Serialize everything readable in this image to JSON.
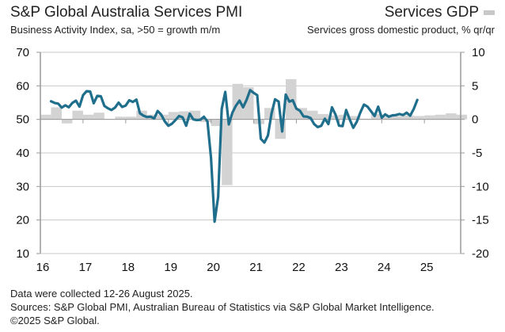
{
  "header": {
    "left_title": "S&P Global Australia Services PMI",
    "left_subtitle": "Business Activity Index, sa, >50 = growth m/m",
    "right_title": "Services GDP",
    "right_subtitle": "Services gross domestic product, % qr/qr"
  },
  "footer": {
    "line1": "Data were collected 12-26 August 2025.",
    "line2": "Sources: S&P Global PMI, Australian Bureau of Statistics via S&P Global Market Intelligence.",
    "line3": "©2025 S&P Global."
  },
  "chart_data": {
    "type": "bar+line",
    "title": "S&P Global Australia Services PMI",
    "legend": "top-right",
    "grid": true,
    "colors": {
      "line": "#1f6e8c",
      "bars": "#d3d3d3",
      "grid": "#c8c8c8",
      "axis": "#999999"
    },
    "x_tick_labels": [
      "16",
      "17",
      "18",
      "19",
      "20",
      "21",
      "22",
      "23",
      "24",
      "25"
    ],
    "x_range": [
      2016.0,
      2025.85
    ],
    "left_axis": {
      "label": "Business Activity Index",
      "ylim": [
        10,
        70
      ],
      "ticks": [
        10,
        20,
        30,
        40,
        50,
        60,
        70
      ]
    },
    "right_axis": {
      "label": "Services GDP % qr/qr",
      "ylim": [
        -20,
        10
      ],
      "ticks": [
        -20,
        -15,
        -10,
        -5,
        0,
        5,
        10
      ]
    },
    "series": [
      {
        "name": "Services GDP",
        "type": "bar",
        "axis": "right",
        "start": 2016.0,
        "step": 0.25,
        "values": [
          0.7,
          1.8,
          -0.6,
          1.3,
          0.7,
          1.0,
          0.0,
          0.4,
          0.4,
          1.3,
          0.7,
          0.7,
          1.1,
          1.2,
          1.3,
          -0.4,
          -1.0,
          -9.8,
          5.3,
          4.8,
          -0.7,
          1.7,
          -2.9,
          6.0,
          1.7,
          1.3,
          0.8,
          0.6,
          0.7,
          0.5,
          0.1,
          0.8,
          0.4,
          0.5,
          0.6,
          0.5,
          0.6,
          0.7,
          0.9,
          0.7
        ]
      },
      {
        "name": "Business Activity Index",
        "type": "line",
        "axis": "left",
        "start": 2016.25,
        "step": 0.08333,
        "values": [
          55.4,
          54.9,
          54.7,
          53.5,
          54.2,
          53.6,
          54.9,
          55.6,
          53.8,
          57.2,
          58.4,
          58.3,
          54.8,
          57.0,
          56.9,
          54.0,
          53.3,
          52.8,
          53.5,
          55.0,
          53.7,
          54.1,
          55.7,
          55.2,
          55.9,
          51.8,
          51.1,
          50.7,
          50.8,
          50.3,
          52.5,
          51.4,
          49.4,
          48.1,
          48.7,
          49.8,
          51.0,
          50.6,
          48.1,
          51.7,
          50.0,
          49.8,
          49.9,
          50.8,
          49.4,
          38.5,
          19.5,
          26.9,
          53.1,
          58.2,
          48.5,
          52.0,
          54.1,
          55.6,
          53.6,
          55.8,
          58.7,
          57.9,
          57.2,
          44.2,
          43.1,
          45.2,
          51.7,
          56.0,
          55.3,
          46.4,
          57.4,
          55.3,
          55.7,
          53.2,
          52.6,
          50.9,
          50.8,
          50.4,
          48.6,
          47.7,
          48.1,
          50.2,
          48.6,
          53.6,
          51.4,
          48.1,
          48.0,
          52.8,
          50.0,
          47.5,
          49.3,
          52.1,
          54.4,
          53.8,
          52.4,
          51.0,
          53.8,
          50.5,
          51.5,
          50.8,
          51.2,
          51.3,
          51.6,
          51.3,
          52.0,
          51.1,
          53.1,
          55.8
        ]
      }
    ]
  }
}
